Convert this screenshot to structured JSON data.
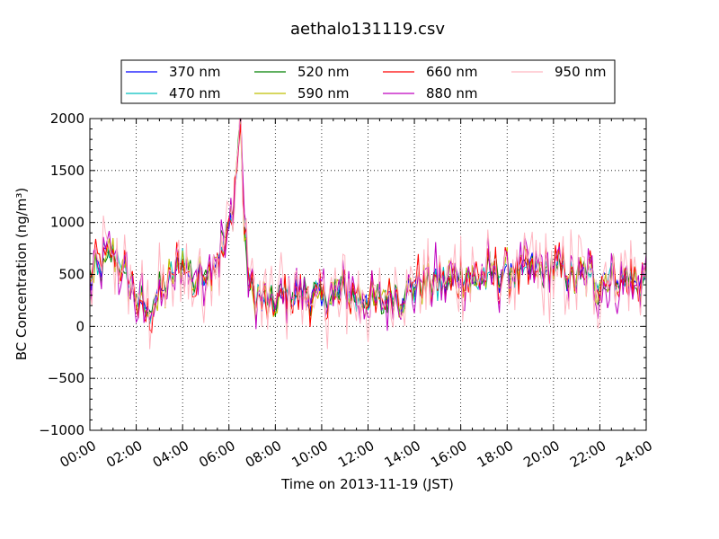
{
  "chart_data": {
    "type": "line",
    "title": "aethalo131119.csv",
    "xlabel": "Time on 2013-11-19 (JST)",
    "ylabel": "BC Concentration (ng/m³)",
    "xlim": [
      0,
      24
    ],
    "ylim": [
      -1000,
      2000
    ],
    "x_ticks": [
      0,
      2,
      4,
      6,
      8,
      10,
      12,
      14,
      16,
      18,
      20,
      22,
      24
    ],
    "x_tick_labels": [
      "00:00",
      "02:00",
      "04:00",
      "06:00",
      "08:00",
      "10:00",
      "12:00",
      "14:00",
      "16:00",
      "18:00",
      "20:00",
      "22:00",
      "24:00"
    ],
    "y_ticks": [
      -1000,
      -500,
      0,
      500,
      1000,
      1500,
      2000
    ],
    "y_tick_labels": [
      "−1000",
      "−500",
      "0",
      "500",
      "1000",
      "1500",
      "2000"
    ],
    "grid": true,
    "legend_position": "top",
    "series": [
      {
        "name": "370 nm",
        "color": "#0000ff"
      },
      {
        "name": "470 nm",
        "color": "#00bfbf"
      },
      {
        "name": "520 nm",
        "color": "#008000"
      },
      {
        "name": "590 nm",
        "color": "#bfbf00"
      },
      {
        "name": "660 nm",
        "color": "#ff0000"
      },
      {
        "name": "880 nm",
        "color": "#bf00bf"
      },
      {
        "name": "950 nm",
        "color": "#ffb6c1"
      }
    ],
    "base_profile": {
      "x": [
        0,
        0.5,
        1,
        1.5,
        2,
        2.5,
        3,
        3.5,
        4,
        4.5,
        5,
        5.5,
        6,
        6.3,
        6.5,
        6.7,
        7,
        7.5,
        8,
        8.5,
        9,
        9.5,
        10,
        10.5,
        11,
        11.5,
        12,
        12.5,
        13,
        13.5,
        14,
        14.5,
        15,
        15.5,
        16,
        16.5,
        17,
        17.5,
        18,
        18.5,
        19,
        19.5,
        20,
        20.5,
        21,
        21.5,
        22,
        22.5,
        23,
        23.5,
        24
      ],
      "y": [
        450,
        600,
        700,
        500,
        300,
        100,
        300,
        450,
        650,
        400,
        550,
        650,
        900,
        1300,
        1800,
        700,
        300,
        250,
        200,
        350,
        300,
        300,
        250,
        300,
        350,
        280,
        250,
        220,
        300,
        300,
        400,
        450,
        400,
        450,
        500,
        450,
        500,
        500,
        550,
        520,
        550,
        500,
        550,
        500,
        450,
        500,
        400,
        500,
        450,
        420,
        480
      ]
    },
    "peak": {
      "x": 6.45,
      "y": 1920
    }
  }
}
